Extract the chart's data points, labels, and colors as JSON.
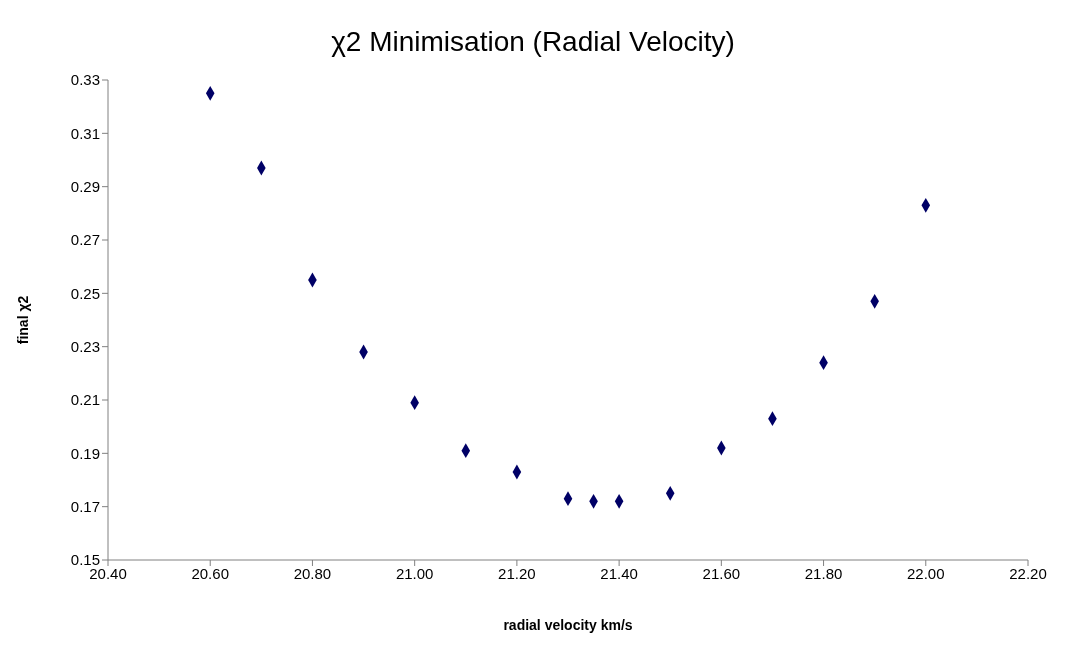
{
  "chart_data": {
    "type": "scatter",
    "title": "χ2 Minimisation (Radial Velocity)",
    "xlabel": "radial velocity km/s",
    "ylabel": "final χ2",
    "x": [
      20.6,
      20.7,
      20.8,
      20.9,
      21.0,
      21.1,
      21.2,
      21.3,
      21.35,
      21.4,
      21.5,
      21.6,
      21.7,
      21.8,
      21.9,
      22.0
    ],
    "values": [
      0.325,
      0.297,
      0.255,
      0.228,
      0.209,
      0.191,
      0.183,
      0.173,
      0.172,
      0.172,
      0.175,
      0.192,
      0.203,
      0.224,
      0.247,
      0.283
    ],
    "color": "#000066",
    "marker": "diamond",
    "grid": false,
    "legend": false,
    "xlim": [
      20.4,
      22.2
    ],
    "xticks": [
      {
        "value": 20.4,
        "label": "20.40"
      },
      {
        "value": 20.6,
        "label": "20.60"
      },
      {
        "value": 20.8,
        "label": "20.80"
      },
      {
        "value": 21.0,
        "label": "21.00"
      },
      {
        "value": 21.2,
        "label": "21.20"
      },
      {
        "value": 21.4,
        "label": "21.40"
      },
      {
        "value": 21.6,
        "label": "21.60"
      },
      {
        "value": 21.8,
        "label": "21.80"
      },
      {
        "value": 22.0,
        "label": "22.00"
      },
      {
        "value": 22.2,
        "label": "22.20"
      }
    ],
    "ylim": [
      0.15,
      0.33
    ],
    "yticks": [
      0.15,
      0.17,
      0.19,
      0.21,
      0.23,
      0.25,
      0.27,
      0.29,
      0.31,
      0.33
    ]
  }
}
